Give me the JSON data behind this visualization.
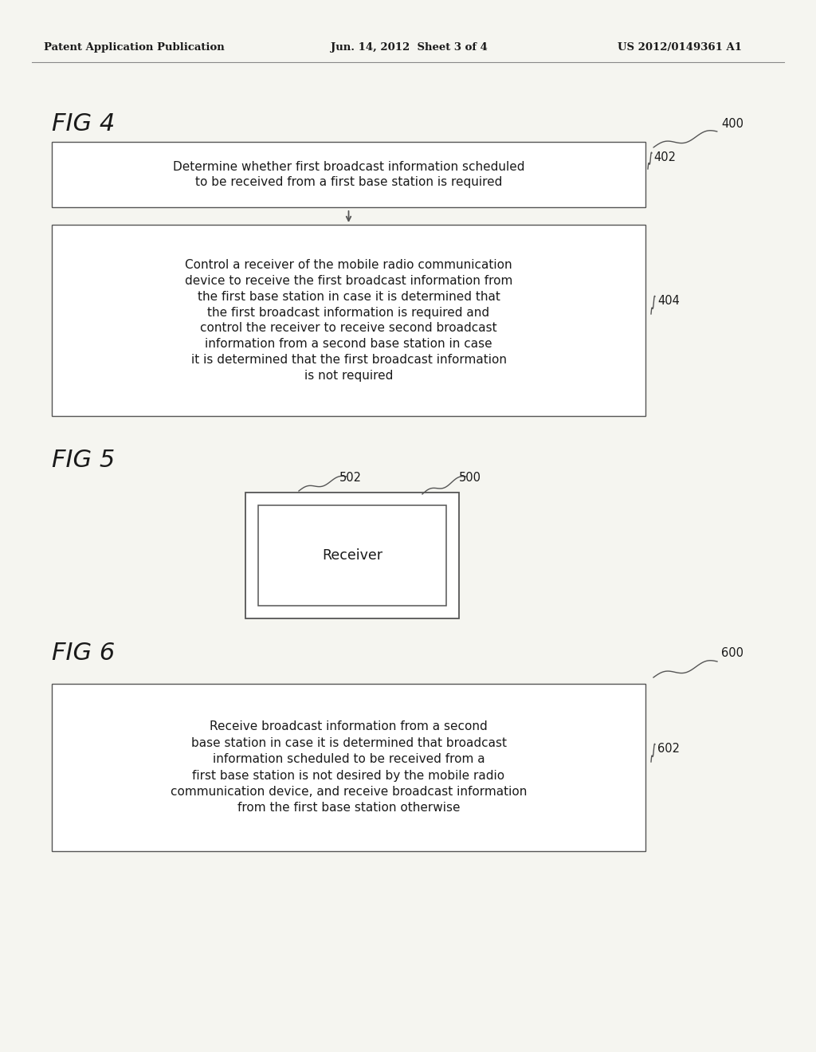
{
  "bg_color": "#f5f5f0",
  "header_left": "Patent Application Publication",
  "header_center": "Jun. 14, 2012  Sheet 3 of 4",
  "header_right": "US 2012/0149361 A1",
  "fig4_label": "FIG 4",
  "fig4_num": "400",
  "fig4_box1_num": "402",
  "fig4_box1_text": "Determine whether first broadcast information scheduled\nto be received from a first base station is required",
  "fig4_box2_num": "404",
  "fig4_box2_text": "Control a receiver of the mobile radio communication\ndevice to receive the first broadcast information from\nthe first base station in case it is determined that\nthe first broadcast information is required and\ncontrol the receiver to receive second broadcast\ninformation from a second base station in case\nit is determined that the first broadcast information\nis not required",
  "fig5_label": "FIG 5",
  "fig5_num": "500",
  "fig5_outer_num": "502",
  "fig5_inner_text": "Receiver",
  "fig6_label": "FIG 6",
  "fig6_num": "600",
  "fig6_box_num": "602",
  "fig6_box_text": "Receive broadcast information from a second\nbase station in case it is determined that broadcast\ninformation scheduled to be received from a\nfirst base station is not desired by the mobile radio\ncommunication device, and receive broadcast information\nfrom the first base station otherwise",
  "text_color": "#1a1a1a",
  "box_edge_color": "#555555",
  "line_color": "#555555"
}
